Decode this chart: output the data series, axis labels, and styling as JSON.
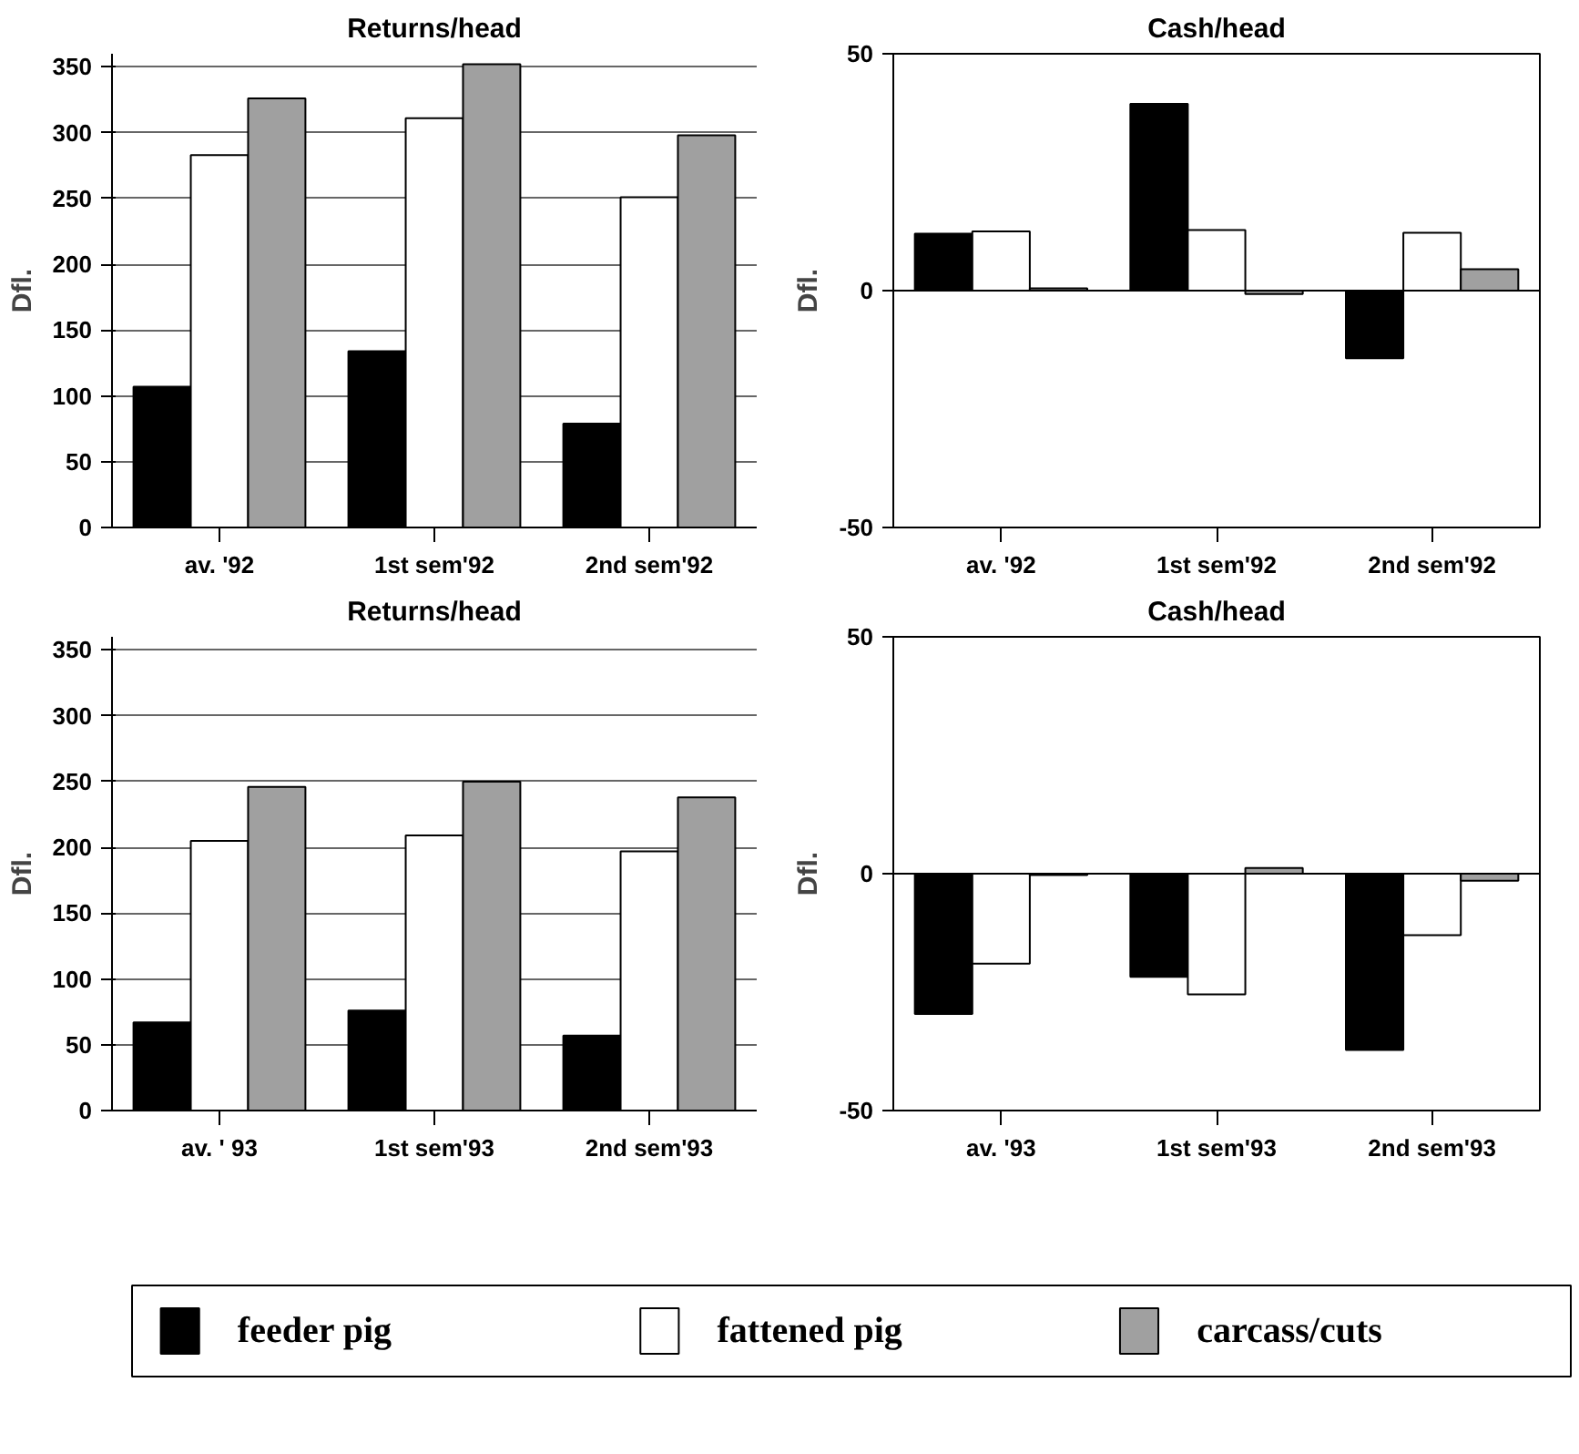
{
  "chart_data": [
    {
      "type": "bar",
      "title": "Returns/head",
      "ylabel": "Dfl.",
      "categories": [
        "av. '92",
        "1st sem'92",
        "2nd sem'92"
      ],
      "ylim": [
        0,
        360
      ],
      "yticks": [
        0,
        50,
        100,
        150,
        200,
        250,
        300,
        350
      ],
      "grid": "y",
      "series": [
        {
          "color": "#000000",
          "values": [
            107,
            134,
            79
          ]
        },
        {
          "color": "#ffffff",
          "values": [
            283,
            311,
            251
          ]
        },
        {
          "color": "#a0a0a0",
          "values": [
            326,
            352,
            298
          ]
        }
      ]
    },
    {
      "type": "bar",
      "title": "Cash/head",
      "ylabel": "Dfl.",
      "categories": [
        "av. '92",
        "1st sem'92",
        "2nd sem'92"
      ],
      "ylim": [
        -50,
        50
      ],
      "yticks": [
        -50,
        0,
        50
      ],
      "grid": false,
      "ref_lines": [
        {
          "axis": "y",
          "value": 0
        }
      ],
      "series": [
        {
          "color": "#000000",
          "values": [
            12,
            39.4,
            -14.3
          ]
        },
        {
          "color": "#ffffff",
          "values": [
            12.5,
            12.8,
            12.2
          ]
        },
        {
          "color": "#a0a0a0",
          "values": [
            0.5,
            -0.7,
            4.5
          ]
        }
      ]
    },
    {
      "type": "bar",
      "title": "Returns/head",
      "ylabel": "Dfl.",
      "categories": [
        "av. ' 93",
        "1st sem'93",
        "2nd sem'93"
      ],
      "ylim": [
        0,
        360
      ],
      "yticks": [
        0,
        50,
        100,
        150,
        200,
        250,
        300,
        350
      ],
      "grid": "y",
      "series": [
        {
          "color": "#000000",
          "values": [
            67,
            76,
            57
          ]
        },
        {
          "color": "#ffffff",
          "values": [
            205,
            209,
            197
          ]
        },
        {
          "color": "#a0a0a0",
          "values": [
            246,
            250,
            238
          ]
        }
      ]
    },
    {
      "type": "bar",
      "title": "Cash/head",
      "ylabel": "Dfl.",
      "categories": [
        "av. '93",
        "1st sem'93",
        "2nd sem'93"
      ],
      "ylim": [
        -50,
        50
      ],
      "yticks": [
        -50,
        0,
        50
      ],
      "grid": false,
      "legend": "bottom",
      "ref_lines": [
        {
          "axis": "y",
          "value": 0
        }
      ],
      "series": [
        {
          "name": "feeder pig",
          "color": "#000000",
          "values": [
            -29.6,
            -21.8,
            -37.2
          ]
        },
        {
          "name": "fattened pig",
          "color": "#ffffff",
          "values": [
            -19,
            -25.5,
            -13
          ]
        },
        {
          "name": "carcass/cuts",
          "color": "#a0a0a0",
          "values": [
            -0.3,
            1.2,
            -1.5
          ]
        }
      ]
    }
  ]
}
